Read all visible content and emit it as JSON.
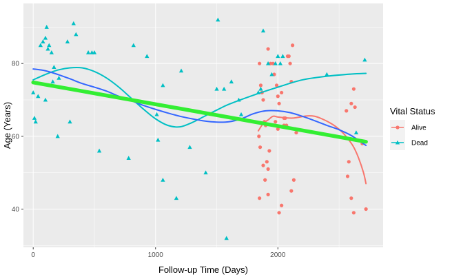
{
  "chart_data": {
    "type": "scatter",
    "title": "",
    "xlabel": "Follow-up Time (Days)",
    "ylabel": "Age (Years)",
    "xlim": [
      -80,
      2860
    ],
    "ylim": [
      29.5,
      96.5
    ],
    "x_ticks": [
      0,
      1000,
      2000
    ],
    "x_tick_labels": [
      "0",
      "1000",
      "2000"
    ],
    "y_ticks": [
      40,
      60,
      80
    ],
    "y_tick_labels": [
      "40",
      "60",
      "80"
    ],
    "grid": true,
    "background": "#ebebeb",
    "legend": {
      "title": "Vital Status",
      "placement": "right",
      "entries": [
        "Alive",
        "Dead"
      ]
    },
    "series": [
      {
        "name": "Alive",
        "color": "#f8766d",
        "marker": "circle",
        "points": [
          [
            1850,
            80
          ],
          [
            1860,
            74
          ],
          [
            1870,
            72
          ],
          [
            1880,
            70
          ],
          [
            1890,
            64
          ],
          [
            1900,
            63
          ],
          [
            1845,
            60
          ],
          [
            1855,
            57
          ],
          [
            1880,
            52
          ],
          [
            1895,
            48
          ],
          [
            1850,
            43
          ],
          [
            1910,
            53
          ],
          [
            1920,
            51
          ],
          [
            1930,
            56
          ],
          [
            1920,
            44
          ],
          [
            1940,
            80
          ],
          [
            1920,
            84
          ],
          [
            1960,
            80
          ],
          [
            1970,
            77
          ],
          [
            1990,
            74
          ],
          [
            2000,
            71
          ],
          [
            2010,
            69
          ],
          [
            2030,
            72
          ],
          [
            2050,
            65
          ],
          [
            2060,
            65
          ],
          [
            2080,
            82
          ],
          [
            2090,
            82
          ],
          [
            2110,
            75
          ],
          [
            2100,
            80
          ],
          [
            2120,
            85
          ],
          [
            2140,
            62
          ],
          [
            2150,
            61
          ],
          [
            2110,
            45
          ],
          [
            2130,
            48
          ],
          [
            2010,
            39
          ],
          [
            2030,
            41
          ],
          [
            2050,
            63
          ],
          [
            2070,
            63
          ],
          [
            2000,
            62
          ],
          [
            1980,
            64
          ],
          [
            2560,
            67
          ],
          [
            2600,
            69
          ],
          [
            2630,
            68
          ],
          [
            2620,
            73
          ],
          [
            2580,
            53
          ],
          [
            2600,
            43
          ],
          [
            2620,
            39
          ],
          [
            2570,
            49
          ],
          [
            2720,
            40
          ],
          [
            2690,
            58
          ]
        ]
      },
      {
        "name": "Dead",
        "color": "#00bfc4",
        "marker": "triangle",
        "points": [
          [
            0,
            72
          ],
          [
            10,
            65
          ],
          [
            20,
            64
          ],
          [
            40,
            71
          ],
          [
            60,
            85
          ],
          [
            80,
            86
          ],
          [
            100,
            87
          ],
          [
            110,
            90
          ],
          [
            130,
            85
          ],
          [
            120,
            84
          ],
          [
            150,
            83
          ],
          [
            160,
            75
          ],
          [
            170,
            79
          ],
          [
            200,
            60
          ],
          [
            210,
            76
          ],
          [
            100,
            70
          ],
          [
            280,
            86
          ],
          [
            300,
            64
          ],
          [
            330,
            91
          ],
          [
            350,
            88
          ],
          [
            450,
            83
          ],
          [
            480,
            83
          ],
          [
            500,
            83
          ],
          [
            540,
            56
          ],
          [
            780,
            54
          ],
          [
            820,
            85
          ],
          [
            930,
            82
          ],
          [
            1010,
            66
          ],
          [
            1020,
            59
          ],
          [
            1060,
            48
          ],
          [
            1060,
            74
          ],
          [
            1170,
            43
          ],
          [
            1210,
            78
          ],
          [
            1280,
            57
          ],
          [
            1410,
            50
          ],
          [
            1500,
            73
          ],
          [
            1510,
            92
          ],
          [
            1560,
            73
          ],
          [
            1580,
            32
          ],
          [
            1620,
            75
          ],
          [
            1680,
            70
          ],
          [
            1700,
            66
          ],
          [
            1880,
            89
          ],
          [
            1950,
            77
          ],
          [
            1980,
            80
          ],
          [
            2000,
            82
          ],
          [
            2020,
            80
          ],
          [
            2040,
            82
          ],
          [
            2400,
            77
          ],
          [
            2640,
            61
          ],
          [
            2710,
            81
          ],
          [
            1840,
            72
          ],
          [
            1860,
            73
          ],
          [
            1920,
            80
          ]
        ]
      }
    ],
    "smooth_lines": [
      {
        "name": "Alive",
        "color": "#f8766d",
        "x": [
          1840,
          1880,
          1920,
          1960,
          2000,
          2060,
          2120,
          2180,
          2240,
          2300,
          2360,
          2420,
          2480,
          2530,
          2580,
          2620,
          2660,
          2700,
          2720
        ],
        "y": [
          61.5,
          63.5,
          64.5,
          65.5,
          65.3,
          65.1,
          65.0,
          65.3,
          65.6,
          65.5,
          64.8,
          63.8,
          62.5,
          61.0,
          59.0,
          57.0,
          54.0,
          50.0,
          47.0
        ]
      },
      {
        "name": "Dead",
        "color": "#00bfc4",
        "x": [
          0,
          100,
          200,
          300,
          400,
          500,
          600,
          700,
          800,
          900,
          1000,
          1100,
          1200,
          1300,
          1400,
          1500,
          1600,
          1800,
          2000,
          2200,
          2400,
          2600,
          2720
        ],
        "y": [
          75.5,
          77.0,
          78.2,
          78.8,
          78.8,
          77.8,
          76.0,
          73.5,
          70.5,
          67.5,
          64.8,
          63.0,
          62.6,
          63.8,
          65.5,
          67.2,
          68.8,
          71.3,
          73.5,
          75.5,
          76.5,
          77.1,
          77.3
        ]
      },
      {
        "name": "",
        "color": "#3366ff",
        "x": [
          0,
          100,
          200,
          300,
          400,
          500,
          600,
          700,
          800,
          900,
          1000,
          1100,
          1200,
          1300,
          1400,
          1500,
          1600,
          1700,
          1800,
          1900,
          2000,
          2100,
          2200,
          2300,
          2400,
          2500,
          2600,
          2720
        ],
        "y": [
          78.5,
          78.0,
          77.0,
          75.8,
          74.5,
          73.5,
          72.4,
          71.0,
          69.8,
          68.5,
          67.4,
          66.4,
          65.5,
          64.8,
          64.2,
          63.9,
          64.0,
          64.8,
          66.2,
          67.0,
          67.0,
          66.5,
          65.5,
          64.3,
          63.0,
          61.8,
          60.2,
          57.5
        ]
      },
      {
        "name": "",
        "color": "#33ee33",
        "x": [
          0,
          2720
        ],
        "y": [
          74.8,
          58.5
        ]
      }
    ]
  }
}
